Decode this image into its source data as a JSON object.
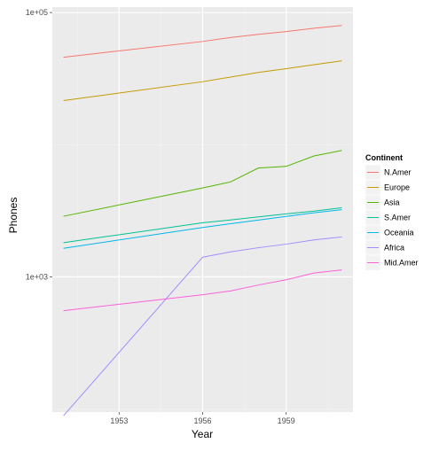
{
  "chart_data": {
    "type": "line",
    "title": "",
    "xlabel": "Year",
    "ylabel": "Phones",
    "x_scale": "linear",
    "y_scale": "log10",
    "xlim": [
      1950.6,
      1961.4
    ],
    "ylim": [
      95,
      110000
    ],
    "x_ticks": [
      1953,
      1956,
      1959
    ],
    "x_tick_labels": [
      "1953",
      "1956",
      "1959"
    ],
    "y_ticks": [
      1000,
      100000
    ],
    "y_tick_labels": [
      "1e+03",
      "1e+05"
    ],
    "grid": true,
    "legend": {
      "title": "Continent",
      "position": "right"
    },
    "x": [
      1951,
      1956,
      1957,
      1958,
      1959,
      1960,
      1961
    ],
    "series": [
      {
        "name": "N.Amer",
        "color": "#F8766D",
        "values": [
          45939,
          60423,
          64721,
          68484,
          71799,
          76036,
          79831
        ]
      },
      {
        "name": "Europe",
        "color": "#C49A00",
        "values": [
          21574,
          29990,
          32510,
          35218,
          37598,
          40341,
          43173
        ]
      },
      {
        "name": "Asia",
        "color": "#53B400",
        "values": [
          2876,
          4708,
          5230,
          6662,
          6856,
          8220,
          9053
        ]
      },
      {
        "name": "S.Amer",
        "color": "#00C094",
        "values": [
          1815,
          2568,
          2695,
          2845,
          3000,
          3145,
          3338
        ]
      },
      {
        "name": "Oceania",
        "color": "#00B6EB",
        "values": [
          1646,
          2366,
          2526,
          2691,
          2868,
          3054,
          3224
        ]
      },
      {
        "name": "Africa",
        "color": "#A58AFF",
        "values": [
          89,
          1411,
          1546,
          1663,
          1769,
          1905,
          2005
        ]
      },
      {
        "name": "Mid.Amer",
        "color": "#FB61D7",
        "values": [
          555,
          733,
          783,
          868,
          951,
          1070,
          1129
        ]
      }
    ]
  }
}
